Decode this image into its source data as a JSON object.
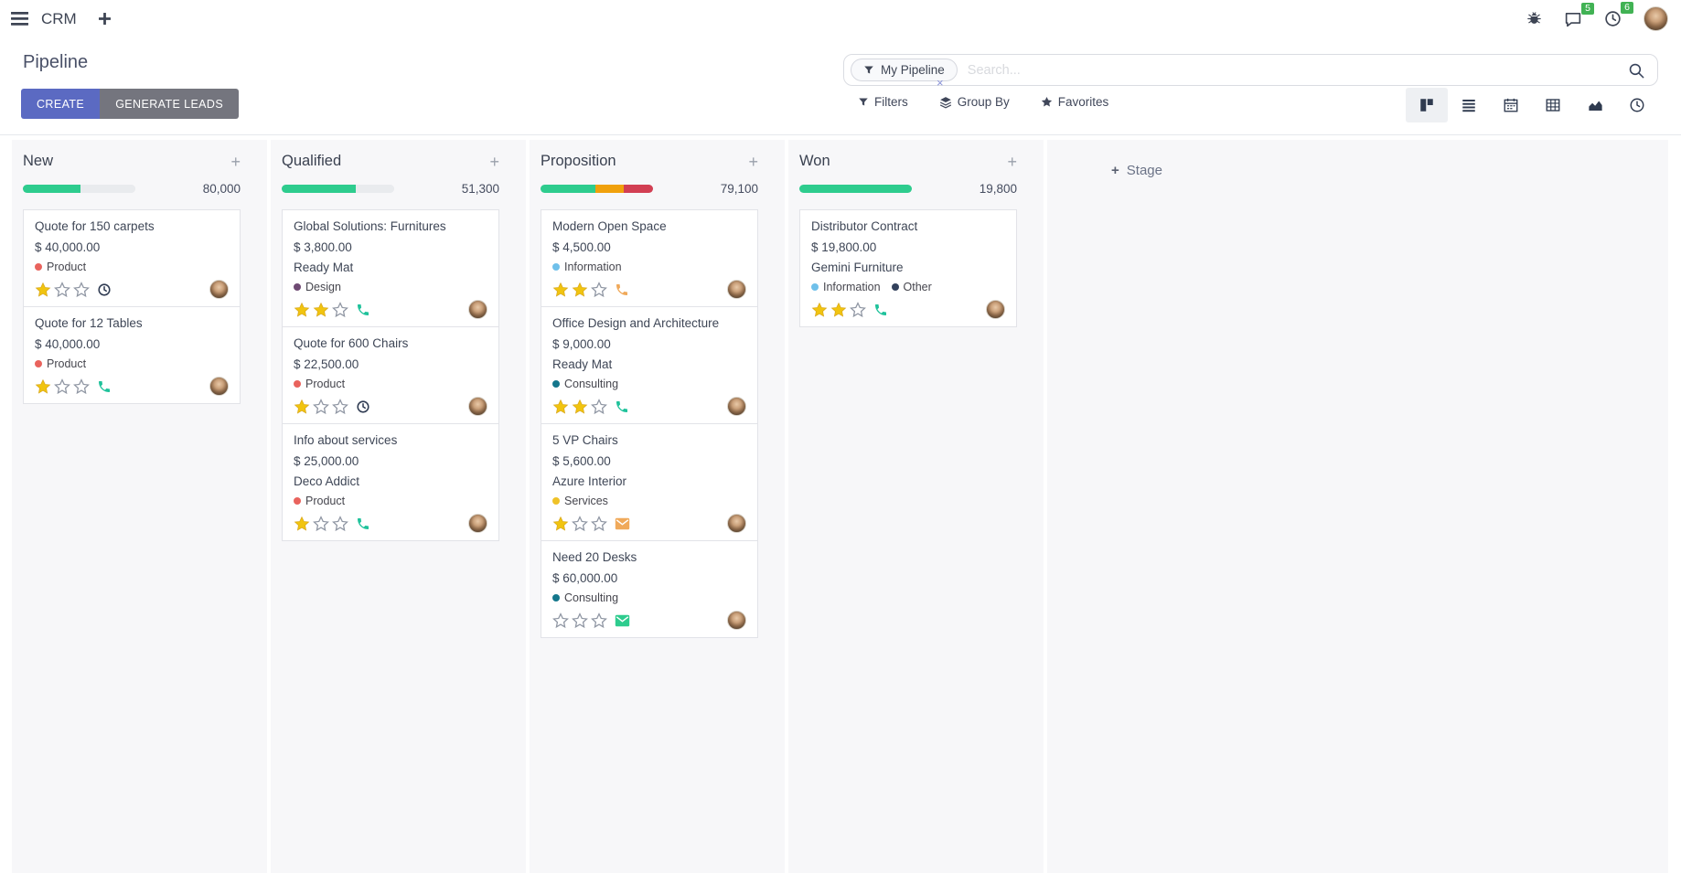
{
  "navbar": {
    "app_name": "CRM",
    "message_badge": "5",
    "activity_badge": "6"
  },
  "control_panel": {
    "title": "Pipeline",
    "buttons": {
      "create": "CREATE",
      "generate_leads": "GENERATE LEADS"
    },
    "search": {
      "facet_label": "My Pipeline",
      "placeholder": "Search...",
      "remove_facet": "×"
    },
    "menus": {
      "filters": "Filters",
      "group_by": "Group By",
      "favorites": "Favorites"
    },
    "view_switcher": {
      "views": [
        "kanban",
        "list",
        "calendar",
        "pivot",
        "graph",
        "activity"
      ],
      "active": "kanban"
    }
  },
  "colors": {
    "primary_button": "#5b6ac2",
    "secondary_button": "#74757e",
    "badge_green": "#41b254",
    "progress_green": "#2ecc8e",
    "progress_yellow": "#f0a10c",
    "progress_red": "#d23f53"
  },
  "kanban": {
    "add_stage_plus": "+",
    "add_stage": "Stage",
    "columns": [
      {
        "name": "New",
        "count": "80,000",
        "progress": [
          {
            "color": "#2ecc8e",
            "pct": 51
          },
          {
            "color": "#e9ebee",
            "pct": 49
          }
        ],
        "cards": [
          {
            "title": "Quote for 150 carpets",
            "amount": "$ 40,000.00",
            "tags": [
              {
                "label": "Product",
                "color": "#e9635d"
              }
            ],
            "stars": 1,
            "activity": {
              "icon": "clock-icon",
              "color": "#2f3b52"
            }
          },
          {
            "title": "Quote for 12 Tables",
            "amount": "$ 40,000.00",
            "tags": [
              {
                "label": "Product",
                "color": "#e9635d"
              }
            ],
            "stars": 1,
            "activity": {
              "icon": "phone-icon",
              "color": "#1fc29b"
            }
          }
        ]
      },
      {
        "name": "Qualified",
        "count": "51,300",
        "progress": [
          {
            "color": "#2ecc8e",
            "pct": 66
          },
          {
            "color": "#e9ebee",
            "pct": 34
          }
        ],
        "cards": [
          {
            "title": "Global Solutions: Furnitures",
            "amount": "$ 3,800.00",
            "partner": "Ready Mat",
            "tags": [
              {
                "label": "Design",
                "color": "#6f4a73"
              }
            ],
            "stars": 2,
            "activity": {
              "icon": "phone-icon",
              "color": "#1fc29b"
            }
          },
          {
            "title": "Quote for 600 Chairs",
            "amount": "$ 22,500.00",
            "tags": [
              {
                "label": "Product",
                "color": "#e9635d"
              }
            ],
            "stars": 1,
            "activity": {
              "icon": "clock-icon",
              "color": "#2f3b52"
            }
          },
          {
            "title": "Info about services",
            "amount": "$ 25,000.00",
            "partner": "Deco Addict",
            "tags": [
              {
                "label": "Product",
                "color": "#e9635d"
              }
            ],
            "stars": 1,
            "activity": {
              "icon": "phone-icon",
              "color": "#1fc29b"
            }
          }
        ]
      },
      {
        "name": "Proposition",
        "count": "79,100",
        "progress": [
          {
            "color": "#2ecc8e",
            "pct": 49
          },
          {
            "color": "#f0a10c",
            "pct": 25
          },
          {
            "color": "#d23f53",
            "pct": 26
          }
        ],
        "cards": [
          {
            "title": "Modern Open Space",
            "amount": "$ 4,500.00",
            "tags": [
              {
                "label": "Information",
                "color": "#6fc0ea"
              }
            ],
            "stars": 2,
            "activity": {
              "icon": "phone-icon",
              "color": "#f0a95a"
            }
          },
          {
            "title": "Office Design and Architecture",
            "amount": "$ 9,000.00",
            "partner": "Ready Mat",
            "tags": [
              {
                "label": "Consulting",
                "color": "#14778c"
              }
            ],
            "stars": 2,
            "activity": {
              "icon": "phone-icon",
              "color": "#1fc29b"
            }
          },
          {
            "title": "5 VP Chairs",
            "amount": "$ 5,600.00",
            "partner": "Azure Interior",
            "tags": [
              {
                "label": "Services",
                "color": "#efc228"
              }
            ],
            "stars": 1,
            "activity": {
              "icon": "mail-icon",
              "color": "#f0a95a"
            }
          },
          {
            "title": "Need 20 Desks",
            "amount": "$ 60,000.00",
            "tags": [
              {
                "label": "Consulting",
                "color": "#14778c"
              }
            ],
            "stars": 0,
            "activity": {
              "icon": "mail-icon",
              "color": "#2ecc8e"
            }
          }
        ]
      },
      {
        "name": "Won",
        "count": "19,800",
        "progress": [
          {
            "color": "#2ecc8e",
            "pct": 100
          }
        ],
        "cards": [
          {
            "title": "Distributor Contract",
            "amount": "$ 19,800.00",
            "partner": "Gemini Furniture",
            "tags": [
              {
                "label": "Information",
                "color": "#6fc0ea"
              },
              {
                "label": "Other",
                "color": "#33415c"
              }
            ],
            "stars": 2,
            "activity": {
              "icon": "phone-icon",
              "color": "#1fc29b"
            }
          }
        ]
      }
    ]
  }
}
